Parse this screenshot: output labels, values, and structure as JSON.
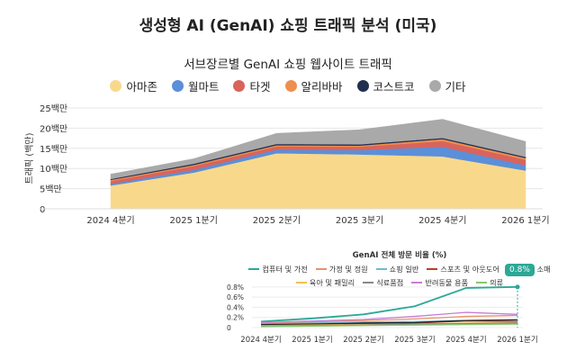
{
  "page": {
    "title": "생성형 AI (GenAI) 쇼핑 트래픽 분석 (미국)"
  },
  "colors": {
    "amazon": "#f8d98c",
    "walmart": "#5b8fd9",
    "target": "#d9645c",
    "alibaba": "#ef8f4f",
    "costco": "#22304f",
    "other": "#a9a9a9"
  },
  "chart_data": [
    {
      "type": "area",
      "stacked": true,
      "title": "서브장르별 GenAI 쇼핑 웹사이트 트래픽",
      "xlabel": "",
      "ylabel": "트래픽 (백만)",
      "categories": [
        "2024 4분기",
        "2025 1분기",
        "2025 2분기",
        "2025 3분기",
        "2025 4분기",
        "2026 1분기"
      ],
      "yticks": [
        "25백만",
        "20백만",
        "15백만",
        "10백만",
        "5백만",
        "0"
      ],
      "ylim": [
        0,
        25
      ],
      "grid": true,
      "legend_position": "top",
      "series": [
        {
          "name": "아마존",
          "color_key": "amazon",
          "values": [
            5.8,
            9.0,
            13.8,
            13.5,
            13.0,
            9.5
          ]
        },
        {
          "name": "월마트",
          "color_key": "walmart",
          "values": [
            0.4,
            0.7,
            0.9,
            1.1,
            2.4,
            1.3
          ]
        },
        {
          "name": "타겟",
          "color_key": "target",
          "values": [
            0.7,
            0.9,
            0.8,
            0.8,
            1.4,
            1.4
          ]
        },
        {
          "name": "알리바바",
          "color_key": "alibaba",
          "values": [
            0.3,
            0.3,
            0.3,
            0.3,
            0.5,
            0.4
          ]
        },
        {
          "name": "코스트코",
          "color_key": "costco",
          "values": [
            0.2,
            0.3,
            0.3,
            0.3,
            0.3,
            0.3
          ]
        },
        {
          "name": "기타",
          "color_key": "other",
          "values": [
            1.2,
            1.2,
            2.6,
            3.6,
            4.6,
            3.8
          ]
        }
      ]
    },
    {
      "type": "line",
      "title": "GenAI 전체 방문 비율 (%)",
      "xlabel": "",
      "ylabel": "",
      "categories": [
        "2024 4분기",
        "2025 1분기",
        "2025 2분기",
        "2025 3분기",
        "2025 4분기",
        "2026 1분기"
      ],
      "yticks": [
        "0.8%",
        "0.6%",
        "0.4%",
        "0.2%",
        "0"
      ],
      "ylim": [
        0,
        0.85
      ],
      "grid": true,
      "legend_position": "top",
      "annotation": "0.8%",
      "series": [
        {
          "name": "컴퓨터 및 가전",
          "color": "#2ba896",
          "values": [
            0.12,
            0.18,
            0.26,
            0.42,
            0.78,
            0.8
          ]
        },
        {
          "name": "가정 및 정원",
          "color": "#e8926a",
          "values": [
            0.08,
            0.11,
            0.14,
            0.17,
            0.22,
            0.24
          ]
        },
        {
          "name": "쇼핑 일반",
          "color": "#6fb7d6",
          "values": [
            0.07,
            0.09,
            0.11,
            0.12,
            0.14,
            0.16
          ]
        },
        {
          "name": "스포츠 및 아웃도어",
          "color": "#c0392b",
          "values": [
            0.05,
            0.06,
            0.08,
            0.09,
            0.13,
            0.12
          ]
        },
        {
          "name": "뷰티 소매",
          "color": "#222222",
          "values": [
            0.06,
            0.07,
            0.09,
            0.1,
            0.14,
            0.15
          ]
        },
        {
          "name": "육아 및 패밀리",
          "color": "#f2c14e",
          "values": [
            0.04,
            0.05,
            0.06,
            0.07,
            0.09,
            0.1
          ]
        },
        {
          "name": "식료품점",
          "color": "#888888",
          "values": [
            0.03,
            0.04,
            0.05,
            0.07,
            0.08,
            0.09
          ]
        },
        {
          "name": "반려동물 용품",
          "color": "#c77dd6",
          "values": [
            0.1,
            0.13,
            0.16,
            0.22,
            0.3,
            0.26
          ]
        },
        {
          "name": "의류",
          "color": "#86c76d",
          "values": [
            0.02,
            0.03,
            0.04,
            0.05,
            0.06,
            0.07
          ]
        }
      ]
    }
  ]
}
